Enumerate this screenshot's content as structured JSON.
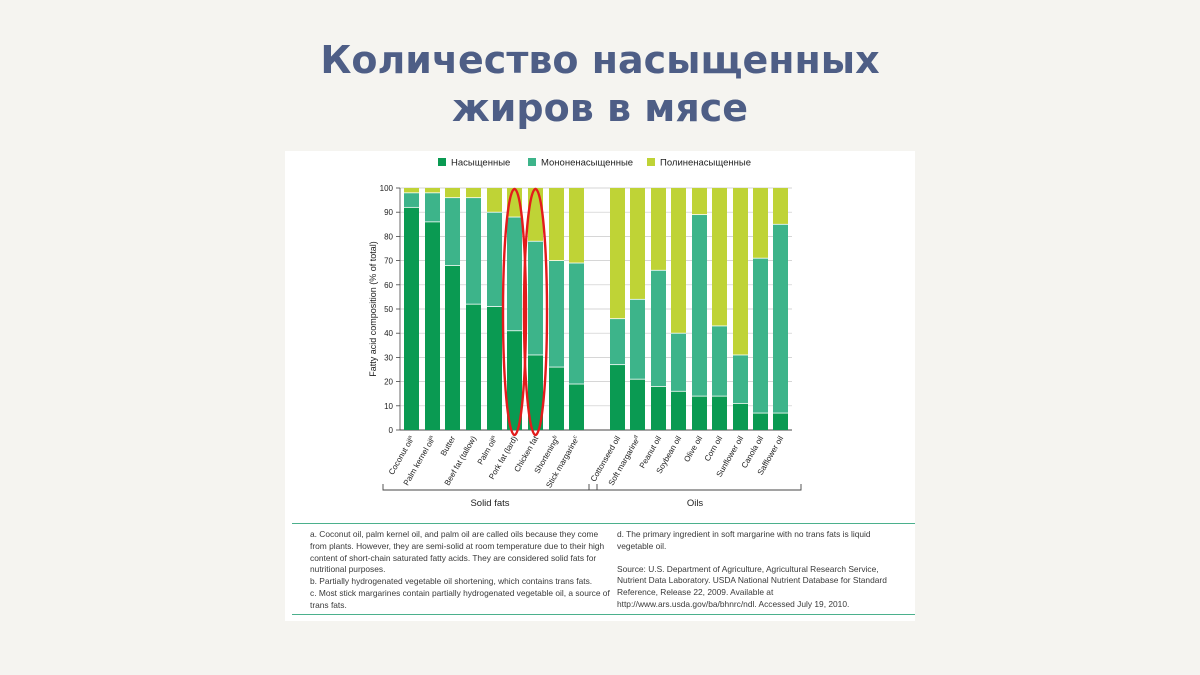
{
  "slide": {
    "title_lines": [
      "Количество насыщенных",
      "жиров в мясе"
    ]
  },
  "chart_data": {
    "type": "bar",
    "stacked": true,
    "ylabel": "Fatty acid composition (% of total)",
    "ylim": [
      0,
      100
    ],
    "yticks": [
      0,
      10,
      20,
      30,
      40,
      50,
      60,
      70,
      80,
      90,
      100
    ],
    "grid": "horizontal",
    "legend_position": "top",
    "series": [
      {
        "name": "Насыщенные",
        "color": "#0a9a52",
        "values": [
          92,
          86,
          68,
          52,
          51,
          41,
          31,
          26,
          19,
          27,
          21,
          18,
          16,
          14,
          14,
          11,
          7,
          7
        ]
      },
      {
        "name": "Мононенасыщенные",
        "color": "#3db48a",
        "values": [
          6,
          12,
          28,
          44,
          39,
          47,
          47,
          44,
          50,
          19,
          33,
          48,
          24,
          75,
          29,
          20,
          64,
          78
        ]
      },
      {
        "name": "Полиненасыщенные",
        "color": "#bfd336",
        "values": [
          2,
          2,
          4,
          4,
          10,
          12,
          22,
          30,
          31,
          54,
          46,
          34,
          60,
          11,
          57,
          69,
          29,
          15
        ]
      }
    ],
    "categories": [
      {
        "label": "Coconut oil",
        "sup": "a"
      },
      {
        "label": "Palm kernel oil",
        "sup": "a"
      },
      {
        "label": "Butter",
        "sup": ""
      },
      {
        "label": "Beef fat (tallow)",
        "sup": ""
      },
      {
        "label": "Palm oil",
        "sup": "a"
      },
      {
        "label": "Pork fat (lard)",
        "sup": ""
      },
      {
        "label": "Chicken fat",
        "sup": ""
      },
      {
        "label": "Shortening",
        "sup": "b"
      },
      {
        "label": "Stick margarine",
        "sup": "c"
      },
      {
        "label": "Cottonseed oil",
        "sup": ""
      },
      {
        "label": "Soft margarine",
        "sup": "d"
      },
      {
        "label": "Peanut oil",
        "sup": ""
      },
      {
        "label": "Soybean oil",
        "sup": ""
      },
      {
        "label": "Olive oil",
        "sup": ""
      },
      {
        "label": "Corn oil",
        "sup": ""
      },
      {
        "label": "Sunflower oil",
        "sup": ""
      },
      {
        "label": "Canola oil",
        "sup": ""
      },
      {
        "label": "Safflower oil",
        "sup": ""
      }
    ],
    "groups": [
      {
        "label": "Solid fats",
        "from": 0,
        "to": 8
      },
      {
        "label": "Oils",
        "from": 9,
        "to": 17
      }
    ],
    "highlighted": [
      5,
      6
    ],
    "highlight_color": "#e31b1b"
  },
  "notes": {
    "left": [
      "a. Coconut oil, palm kernel oil, and palm oil are called oils because they come from plants. However, they are semi-solid at room temperature due to their high content of short-chain saturated fatty acids. They are considered solid fats for nutritional purposes.",
      "b. Partially hydrogenated vegetable oil shortening, which contains trans fats.",
      "c. Most stick margarines contain partially hydrogenated vegetable oil, a source of trans fats."
    ],
    "right": [
      "d. The primary ingredient in soft margarine with no trans fats is liquid vegetable oil.",
      "",
      "Source: U.S. Department of Agriculture, Agricultural Research Service, Nutrient Data Laboratory. USDA National Nutrient Database for Standard Reference, Release 22, 2009. Available at http://www.ars.usda.gov/ba/bhnrc/ndl. Accessed July 19, 2010."
    ]
  }
}
